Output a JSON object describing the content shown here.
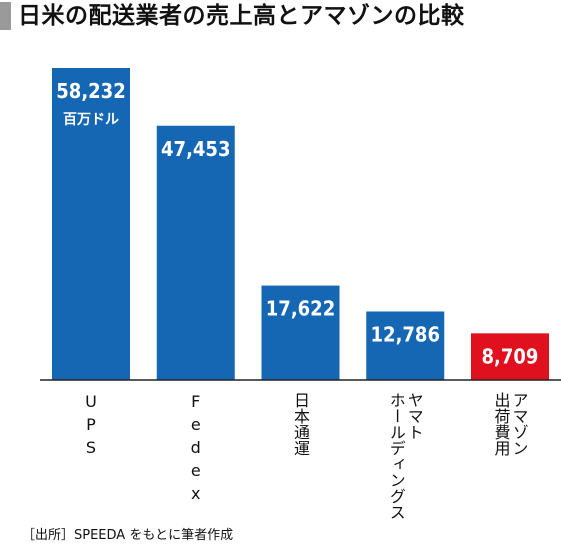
{
  "title": "日米の配送業者の売上高とアマゾンの比較",
  "source_note": "［出所］SPEEDA をもとに筆者作成",
  "unit_label": "百万ドル",
  "colors": {
    "bar": "#1566b3",
    "highlight": "#e0101e",
    "axis": "#222222",
    "label_text": "#ffffff"
  },
  "chart_data": {
    "type": "bar",
    "title": "日米の配送業者の売上高とアマゾンの比較",
    "categories": [
      "UPS",
      "Fedex",
      "日本通運",
      "ヤマトホールディングス",
      "アマゾン出荷費用"
    ],
    "category_lines": [
      [
        "UPS"
      ],
      [
        "Fedex"
      ],
      [
        "日本通運"
      ],
      [
        "ヤマト",
        "ホールディングス"
      ],
      [
        "アマゾン",
        "出荷費用"
      ]
    ],
    "values": [
      58232,
      47453,
      17622,
      12786,
      8709
    ],
    "value_labels": [
      "58,232",
      "47,453",
      "17,622",
      "12,786",
      "8,709"
    ],
    "highlight_index": 4,
    "ylim": [
      0,
      60000
    ],
    "unit": "百万ドル",
    "grid": false,
    "legend": "none"
  }
}
